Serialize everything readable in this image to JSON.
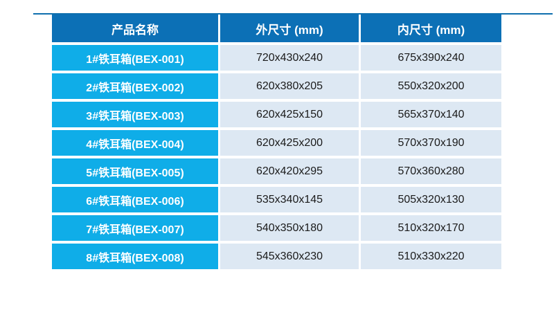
{
  "colors": {
    "header_bg": "#0c70b6",
    "name_column_bg": "#0fade8",
    "value_cell_bg": "#dde8f3",
    "header_text": "#ffffff",
    "value_text": "#1a1a1a",
    "top_rule": "#0e6fae"
  },
  "table": {
    "headers": [
      "产品名称",
      "外尺寸 (mm)",
      "内尺寸 (mm)"
    ],
    "rows": [
      {
        "name": "1#铁耳箱(BEX-001)",
        "outer": "720x430x240",
        "inner": "675x390x240"
      },
      {
        "name": "2#铁耳箱(BEX-002)",
        "outer": "620x380x205",
        "inner": "550x320x200"
      },
      {
        "name": "3#铁耳箱(BEX-003)",
        "outer": "620x425x150",
        "inner": "565x370x140"
      },
      {
        "name": "4#铁耳箱(BEX-004)",
        "outer": "620x425x200",
        "inner": "570x370x190"
      },
      {
        "name": "5#铁耳箱(BEX-005)",
        "outer": "620x420x295",
        "inner": "570x360x280"
      },
      {
        "name": "6#铁耳箱(BEX-006)",
        "outer": "535x340x145",
        "inner": "505x320x130"
      },
      {
        "name": "7#铁耳箱(BEX-007)",
        "outer": "540x350x180",
        "inner": "510x320x170"
      },
      {
        "name": "8#铁耳箱(BEX-008)",
        "outer": "545x360x230",
        "inner": "510x330x220"
      }
    ]
  },
  "chart_data": {
    "type": "table",
    "title": "",
    "columns": [
      "产品名称",
      "外尺寸 (mm)",
      "内尺寸 (mm)"
    ],
    "rows": [
      [
        "1#铁耳箱(BEX-001)",
        "720x430x240",
        "675x390x240"
      ],
      [
        "2#铁耳箱(BEX-002)",
        "620x380x205",
        "550x320x200"
      ],
      [
        "3#铁耳箱(BEX-003)",
        "620x425x150",
        "565x370x140"
      ],
      [
        "4#铁耳箱(BEX-004)",
        "620x425x200",
        "570x370x190"
      ],
      [
        "5#铁耳箱(BEX-005)",
        "620x420x295",
        "570x360x280"
      ],
      [
        "6#铁耳箱(BEX-006)",
        "535x340x145",
        "505x320x130"
      ],
      [
        "7#铁耳箱(BEX-007)",
        "540x350x180",
        "510x320x170"
      ],
      [
        "8#铁耳箱(BEX-008)",
        "545x360x230",
        "510x330x220"
      ]
    ]
  }
}
